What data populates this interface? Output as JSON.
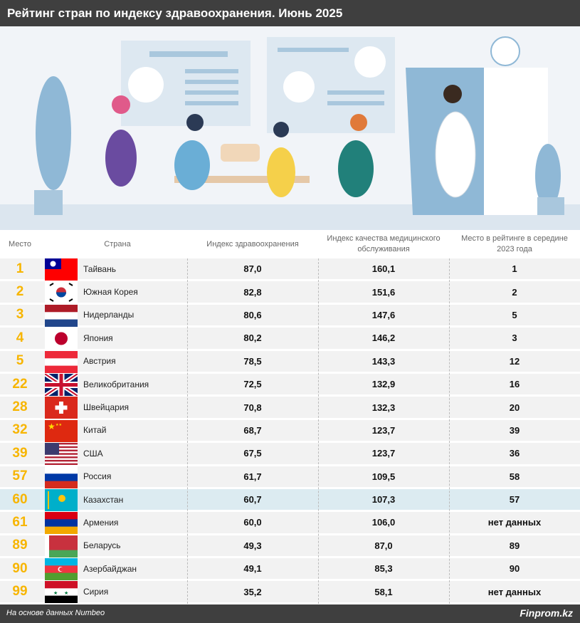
{
  "title": "Рейтинг стран по индексу здравоохранения. Июнь 2025",
  "columns": [
    "Место",
    "Страна",
    "Индекс здравоохранения",
    "Индекс качества медицинского обслуживания",
    "Место в рейтинге в середине 2023 года"
  ],
  "highlight_color": "#dcebf1",
  "rank_color": "#f7b500",
  "rows": [
    {
      "rank": "1",
      "country": "Тайвань",
      "flag": "taiwan",
      "health": "87,0",
      "quality": "160,1",
      "prev": "1"
    },
    {
      "rank": "2",
      "country": "Южная Корея",
      "flag": "south-korea",
      "health": "82,8",
      "quality": "151,6",
      "prev": "2"
    },
    {
      "rank": "3",
      "country": "Нидерланды",
      "flag": "netherlands",
      "health": "80,6",
      "quality": "147,6",
      "prev": "5"
    },
    {
      "rank": "4",
      "country": "Япония",
      "flag": "japan",
      "health": "80,2",
      "quality": "146,2",
      "prev": "3"
    },
    {
      "rank": "5",
      "country": "Австрия",
      "flag": "austria",
      "health": "78,5",
      "quality": "143,3",
      "prev": "12"
    },
    {
      "rank": "22",
      "country": "Великобритания",
      "flag": "uk",
      "health": "72,5",
      "quality": "132,9",
      "prev": "16"
    },
    {
      "rank": "28",
      "country": "Швейцария",
      "flag": "switzerland",
      "health": "70,8",
      "quality": "132,3",
      "prev": "20"
    },
    {
      "rank": "32",
      "country": "Китай",
      "flag": "china",
      "health": "68,7",
      "quality": "123,7",
      "prev": "39"
    },
    {
      "rank": "39",
      "country": "США",
      "flag": "usa",
      "health": "67,5",
      "quality": "123,7",
      "prev": "36"
    },
    {
      "rank": "57",
      "country": "Россия",
      "flag": "russia",
      "health": "61,7",
      "quality": "109,5",
      "prev": "58"
    },
    {
      "rank": "60",
      "country": "Казахстан",
      "flag": "kazakhstan",
      "health": "60,7",
      "quality": "107,3",
      "prev": "57",
      "highlight": true
    },
    {
      "rank": "61",
      "country": "Армения",
      "flag": "armenia",
      "health": "60,0",
      "quality": "106,0",
      "prev": "нет данных"
    },
    {
      "rank": "89",
      "country": "Беларусь",
      "flag": "belarus",
      "health": "49,3",
      "quality": "87,0",
      "prev": "89"
    },
    {
      "rank": "90",
      "country": "Азербайджан",
      "flag": "azerbaijan",
      "health": "49,1",
      "quality": "85,3",
      "prev": "90"
    },
    {
      "rank": "99",
      "country": "Сирия",
      "flag": "syria",
      "health": "35,2",
      "quality": "58,1",
      "prev": "нет данных"
    }
  ],
  "footer": {
    "source": "На основе данных Numbeo",
    "brand": "Finprom.kz"
  }
}
